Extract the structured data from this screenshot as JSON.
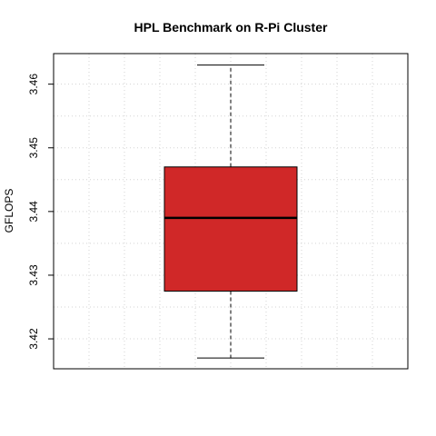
{
  "chart_data": {
    "type": "box",
    "title": "HPL Benchmark on R-Pi Cluster",
    "xlabel": "",
    "ylabel": "GFLOPS",
    "ylim": [
      3.4153,
      3.4648
    ],
    "yticks": [
      {
        "value": 3.42,
        "label": "3.42"
      },
      {
        "value": 3.43,
        "label": "3.43"
      },
      {
        "value": 3.44,
        "label": "3.44"
      },
      {
        "value": 3.45,
        "label": "3.45"
      },
      {
        "value": 3.46,
        "label": "3.46"
      }
    ],
    "box": {
      "min": 3.417,
      "q1": 3.4275,
      "median": 3.439,
      "q3": 3.447,
      "max": 3.463
    },
    "grid": true,
    "colors": {
      "box_fill": "#d02828",
      "box_stroke": "#000000",
      "grid": "#d3d3d3"
    }
  }
}
